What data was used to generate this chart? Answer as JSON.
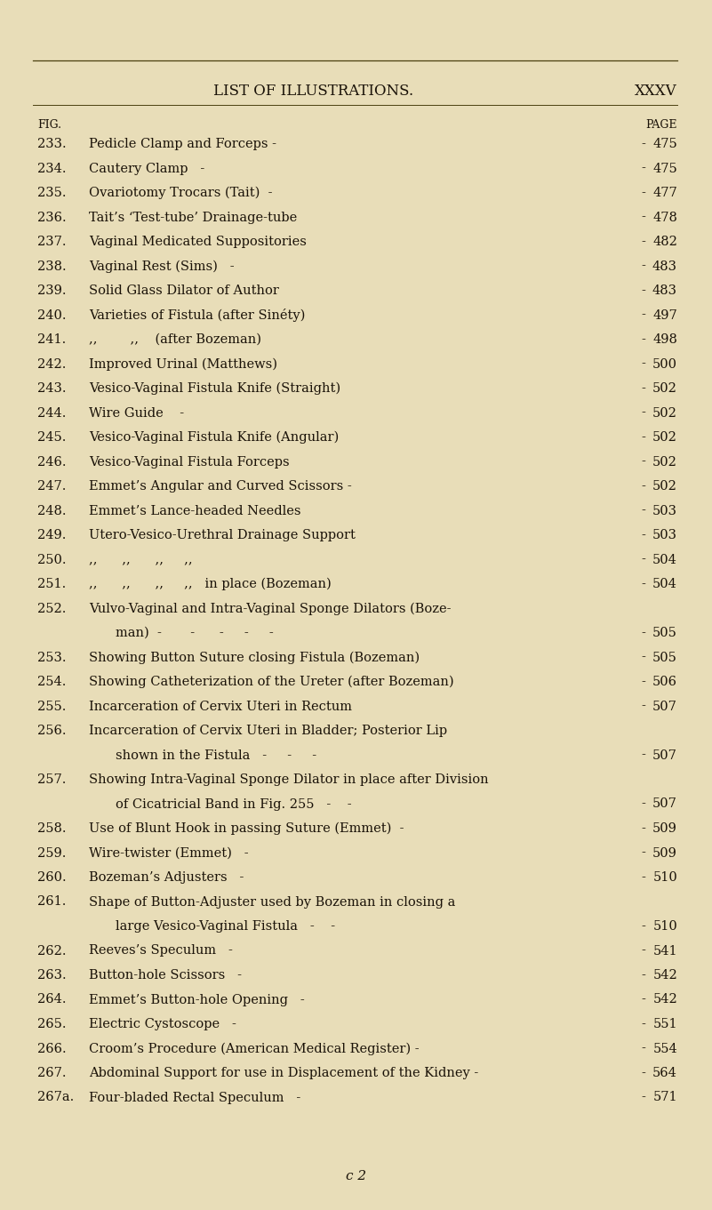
{
  "bg_color": "#E8DDB8",
  "text_color": "#1a1208",
  "title": "LIST OF ILLUSTRATIONS.",
  "page_num": "XXXV",
  "fig_label": "FIG.",
  "page_label": "PAGE",
  "entries": [
    {
      "num": "233.",
      "text": "Pedicle Clamp and Forceps -",
      "mid_dashes": "         -          -",
      "page": "475",
      "indent": 0,
      "continued": false
    },
    {
      "num": "234.",
      "text": "Cautery Clamp   -",
      "mid_dashes": "         -          -          -",
      "page": "475",
      "indent": 0,
      "continued": false
    },
    {
      "num": "235.",
      "text": "Ovariotomy Trocars (Tait)  -",
      "mid_dashes": "         -          -",
      "page": "477",
      "indent": 0,
      "continued": false
    },
    {
      "num": "236.",
      "text": "Tait’s ‘Test-tube’ Drainage-tube",
      "mid_dashes": "    -          -",
      "page": "478",
      "indent": 0,
      "continued": false
    },
    {
      "num": "237.",
      "text": "Vaginal Medicated Suppositories",
      "mid_dashes": "    -          -",
      "page": "482",
      "indent": 0,
      "continued": false
    },
    {
      "num": "238.",
      "text": "Vaginal Rest (Sims)   -",
      "mid_dashes": "         -          -",
      "page": "483",
      "indent": 0,
      "continued": false
    },
    {
      "num": "239.",
      "text": "Solid Glass Dilator of Author",
      "mid_dashes": "    -          -",
      "page": "483",
      "indent": 0,
      "continued": false
    },
    {
      "num": "240.",
      "text": "Varieties of Fistula (after Sinéty)",
      "mid_dashes": "    -          -",
      "page": "497",
      "indent": 0,
      "continued": false
    },
    {
      "num": "241.",
      "text": ",,        ,,    (after Bozeman)",
      "mid_dashes": "    -          -",
      "page": "498",
      "indent": 0,
      "continued": false
    },
    {
      "num": "242.",
      "text": "Improved Urinal (Matthews)",
      "mid_dashes": "    -          -",
      "page": "500",
      "indent": 0,
      "continued": false
    },
    {
      "num": "243.",
      "text": "Vesico-Vaginal Fistula Knife (Straight)",
      "mid_dashes": "  -",
      "page": "502",
      "indent": 0,
      "continued": false
    },
    {
      "num": "244.",
      "text": "Wire Guide    -",
      "mid_dashes": "         -          -          -",
      "page": "502",
      "indent": 0,
      "continued": false
    },
    {
      "num": "245.",
      "text": "Vesico-Vaginal Fistula Knife (Angular)",
      "mid_dashes": "    -",
      "page": "502",
      "indent": 0,
      "continued": false
    },
    {
      "num": "246.",
      "text": "Vesico-Vaginal Fistula Forceps",
      "mid_dashes": "    -          -",
      "page": "502",
      "indent": 0,
      "continued": false
    },
    {
      "num": "247.",
      "text": "Emmet’s Angular and Curved Scissors -",
      "mid_dashes": "    -",
      "page": "502",
      "indent": 0,
      "continued": false
    },
    {
      "num": "248.",
      "text": "Emmet’s Lance-headed Needles",
      "mid_dashes": "    -          -",
      "page": "503",
      "indent": 0,
      "continued": false
    },
    {
      "num": "249.",
      "text": "Utero-Vesico-Urethral Drainage Support",
      "mid_dashes": "    -",
      "page": "503",
      "indent": 0,
      "continued": false
    },
    {
      "num": "250.",
      "text": ",,      ,,      ,,     ,,",
      "mid_dashes": "    -          -",
      "page": "504",
      "indent": 0,
      "continued": false
    },
    {
      "num": "251.",
      "text": ",,      ,,      ,,     ,,   in place (Bozeman)",
      "mid_dashes": "",
      "page": "504",
      "indent": 0,
      "continued": false
    },
    {
      "num": "252.",
      "text": "Vulvo-Vaginal and Intra-Vaginal Sponge Dilators (Boze-",
      "mid_dashes": "",
      "page": "",
      "indent": 0,
      "continued": true
    },
    {
      "num": "",
      "text": "man)  -       -      -     -     -",
      "mid_dashes": "",
      "page": "505",
      "indent": 1,
      "continued": false
    },
    {
      "num": "253.",
      "text": "Showing Button Suture closing Fistula (Bozeman)",
      "mid_dashes": "  -",
      "page": "505",
      "indent": 0,
      "continued": false
    },
    {
      "num": "254.",
      "text": "Showing Catheterization of the Ureter (after Bozeman)",
      "mid_dashes": " -",
      "page": "506",
      "indent": 0,
      "continued": false
    },
    {
      "num": "255.",
      "text": "Incarceration of Cervix Uteri in Rectum",
      "mid_dashes": "    -",
      "page": "507",
      "indent": 0,
      "continued": false
    },
    {
      "num": "256.",
      "text": "Incarceration of Cervix Uteri in Bladder; Posterior Lip",
      "mid_dashes": "",
      "page": "",
      "indent": 0,
      "continued": true
    },
    {
      "num": "",
      "text": "shown in the Fistula   -     -     -",
      "mid_dashes": "",
      "page": "507",
      "indent": 1,
      "continued": false
    },
    {
      "num": "257.",
      "text": "Showing Intra-Vaginal Sponge Dilator in place after Division",
      "mid_dashes": "",
      "page": "",
      "indent": 0,
      "continued": true
    },
    {
      "num": "",
      "text": "of Cicatricial Band in Fig. 255   -    -",
      "mid_dashes": "",
      "page": "507",
      "indent": 1,
      "continued": false
    },
    {
      "num": "258.",
      "text": "Use of Blunt Hook in passing Suture (Emmet)  -",
      "mid_dashes": "",
      "page": "509",
      "indent": 0,
      "continued": false
    },
    {
      "num": "259.",
      "text": "Wire-twister (Emmet)   -",
      "mid_dashes": "         -          -",
      "page": "509",
      "indent": 0,
      "continued": false
    },
    {
      "num": "260.",
      "text": "Bozeman’s Adjusters   -",
      "mid_dashes": "         -          -",
      "page": "510",
      "indent": 0,
      "continued": false
    },
    {
      "num": "261.",
      "text": "Shape of Button-Adjuster used by Bozeman in closing a",
      "mid_dashes": "",
      "page": "",
      "indent": 0,
      "continued": true
    },
    {
      "num": "",
      "text": "large Vesico-Vaginal Fistula   -    -",
      "mid_dashes": "",
      "page": "510",
      "indent": 1,
      "continued": false
    },
    {
      "num": "262.",
      "text": "Reeves’s Speculum   -",
      "mid_dashes": "         -          -",
      "page": "541",
      "indent": 0,
      "continued": false
    },
    {
      "num": "263.",
      "text": "Button-hole Scissors   -",
      "mid_dashes": "         -          -",
      "page": "542",
      "indent": 0,
      "continued": false
    },
    {
      "num": "264.",
      "text": "Emmet’s Button-hole Opening   -",
      "mid_dashes": "         -",
      "page": "542",
      "indent": 0,
      "continued": false
    },
    {
      "num": "265.",
      "text": "Electric Cystoscope   -",
      "mid_dashes": "         -          -",
      "page": "551",
      "indent": 0,
      "continued": false
    },
    {
      "num": "266.",
      "text": "Croom’s Procedure (American Medical Register) -",
      "mid_dashes": "   -",
      "page": "554",
      "indent": 0,
      "continued": false
    },
    {
      "num": "267.",
      "text": "Abdominal Support for use in Displacement of the Kidney -",
      "mid_dashes": "",
      "page": "564",
      "indent": 0,
      "continued": false
    },
    {
      "num": "267a.",
      "text": "Four-bladed Rectal Speculum   -",
      "mid_dashes": "         -",
      "page": "571",
      "indent": 0,
      "continued": false
    }
  ],
  "footer": "c 2"
}
